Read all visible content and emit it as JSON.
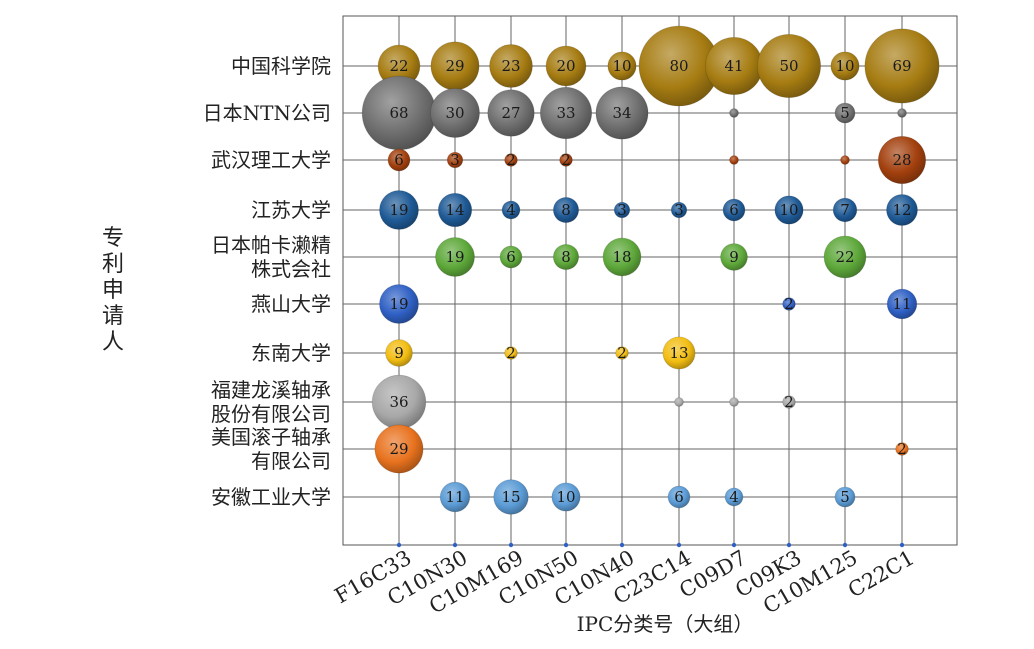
{
  "chart_data": {
    "type": "bubble",
    "title": "",
    "xlabel": "IPC分类号（大组）",
    "ylabel": "专利申请人",
    "categories": [
      "F16C33",
      "C10N30",
      "C10M169",
      "C10N50",
      "C10N40",
      "C23C14",
      "C09D7",
      "C09K3",
      "C10M125",
      "C22C1"
    ],
    "applicants": [
      {
        "label": [
          "中国科学院"
        ],
        "color": "#a67c12"
      },
      {
        "label": [
          "日本NTN公司"
        ],
        "color": "#6f6f6f"
      },
      {
        "label": [
          "武汉理工大学"
        ],
        "color": "#a3400e"
      },
      {
        "label": [
          "江苏大学"
        ],
        "color": "#1f5a96"
      },
      {
        "label": [
          "日本帕卡濑精",
          "株式会社"
        ],
        "color": "#5ea83a"
      },
      {
        "label": [
          "燕山大学"
        ],
        "color": "#2f60c4"
      },
      {
        "label": [
          "东南大学"
        ],
        "color": "#f2bd12"
      },
      {
        "label": [
          "福建龙溪轴承",
          "股份有限公司"
        ],
        "color": "#a8a8a8"
      },
      {
        "label": [
          "美国滚子轴承",
          "有限公司"
        ],
        "color": "#e8721e"
      },
      {
        "label": [
          "安徽工业大学"
        ],
        "color": "#5b9bd5"
      }
    ],
    "values": [
      [
        22,
        29,
        23,
        20,
        10,
        80,
        41,
        50,
        10,
        69
      ],
      [
        68,
        30,
        27,
        33,
        34,
        null,
        1,
        null,
        5,
        1
      ],
      [
        6,
        3,
        2,
        2,
        null,
        null,
        1,
        null,
        1,
        28
      ],
      [
        19,
        14,
        4,
        8,
        3,
        3,
        6,
        10,
        7,
        12
      ],
      [
        null,
        19,
        6,
        8,
        18,
        null,
        9,
        null,
        22,
        null
      ],
      [
        19,
        null,
        null,
        null,
        null,
        null,
        null,
        2,
        null,
        11
      ],
      [
        9,
        null,
        2,
        null,
        2,
        13,
        null,
        null,
        null,
        null
      ],
      [
        36,
        null,
        null,
        null,
        null,
        1,
        1,
        2,
        null,
        null
      ],
      [
        29,
        null,
        null,
        null,
        null,
        null,
        null,
        null,
        null,
        2
      ],
      [
        null,
        11,
        15,
        10,
        null,
        6,
        4,
        null,
        5,
        null
      ]
    ],
    "labeled_min": 2,
    "grid": true,
    "legend": "none"
  }
}
